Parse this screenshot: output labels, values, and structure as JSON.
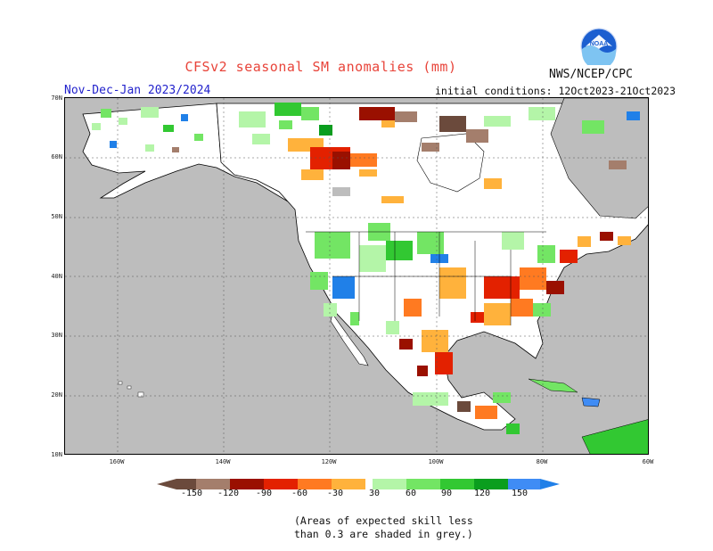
{
  "header": {
    "title": "CFSv2 seasonal SM anomalies (mm)",
    "period": "Nov-Dec-Jan 2023/2024",
    "initial_conditions": "initial conditions: 12Oct2023-21Oct2023",
    "agency": "NWS/NCEP/CPC",
    "logo_text": "NOAA"
  },
  "map": {
    "lat_labels": [
      "70N",
      "60N",
      "50N",
      "40N",
      "30N",
      "20N",
      "10N"
    ],
    "lon_labels": [
      "160W",
      "140W",
      "120W",
      "100W",
      "80W",
      "60W"
    ]
  },
  "colorbar": {
    "labels": [
      "-150",
      "-120",
      "-90",
      "-60",
      "-30",
      "30",
      "60",
      "90",
      "120",
      "150"
    ],
    "colors": [
      "#6b4a3c",
      "#a47e6c",
      "#9a1000",
      "#e32100",
      "#ff7a21",
      "#ffb23c",
      "#ffffff",
      "#b4f5a8",
      "#73e564",
      "#32c832",
      "#0a9e1e",
      "#3f8cf5",
      "#2080e8"
    ]
  },
  "note": {
    "line1": "(Areas of expected skill less",
    "line2": "than 0.3 are shaded in grey.)"
  },
  "colors": {
    "title": "#e8443a",
    "period": "#2222cc",
    "grey_low_skill": "#bdbdbd",
    "land_neutral": "#ffffff"
  }
}
